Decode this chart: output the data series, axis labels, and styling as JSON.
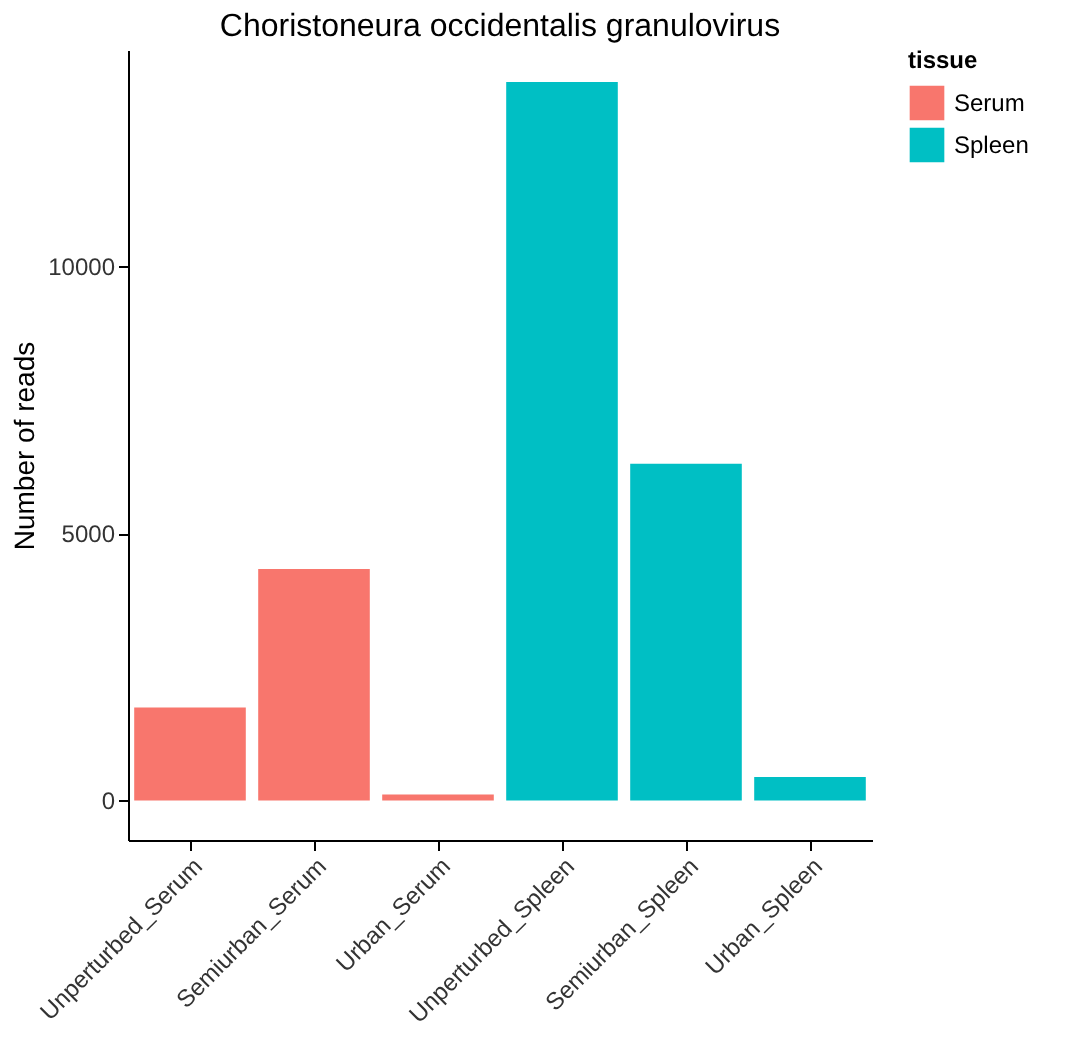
{
  "chart_data": {
    "type": "bar",
    "title": "Choristoneura occidentalis granulovirus",
    "xlabel": null,
    "ylabel": "Number of reads",
    "legend_title": "tissue",
    "categories": [
      "Unperturbed_Serum",
      "Semiurban_Serum",
      "Urban_Serum",
      "Unperturbed_Spleen",
      "Semiurban_Spleen",
      "Urban_Spleen"
    ],
    "series": [
      {
        "name": "Serum",
        "color": "#f8766d",
        "values": [
          1740,
          4330,
          110,
          null,
          null,
          null
        ]
      },
      {
        "name": "Spleen",
        "color": "#00bfc4",
        "values": [
          null,
          null,
          null,
          13440,
          6300,
          440
        ]
      }
    ],
    "ylim": [
      -740,
      14040
    ],
    "yticks": [
      0,
      5000,
      10000
    ],
    "grid": false,
    "legend": "right"
  }
}
